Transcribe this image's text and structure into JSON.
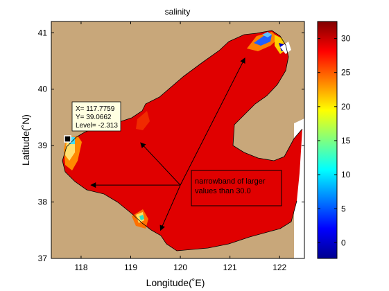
{
  "chart_data": {
    "type": "heatmap",
    "title": "salinity",
    "xlabel": "Longitude(˚E)",
    "ylabel": "Latitude(˚N)",
    "xlim": [
      117.4,
      122.5
    ],
    "ylim": [
      37,
      41.2
    ],
    "xticks": [
      118,
      119,
      120,
      121,
      122
    ],
    "yticks": [
      37,
      38,
      39,
      40,
      41
    ],
    "colorbar": {
      "range": [
        -2.3,
        32.5
      ],
      "ticks": [
        0,
        5,
        10,
        15,
        20,
        25,
        30
      ],
      "colormap": "jet"
    },
    "dominant_value": 30.5,
    "land_color": "#c8a77a",
    "datatip": {
      "x": 117.7759,
      "y": 39.0662,
      "level": -2.313,
      "lines": [
        "X= 117.7759",
        "Y= 39.0662",
        "Level= -2.313"
      ]
    },
    "annotation": {
      "lines": [
        "narrowband of larger",
        "values than 30.0"
      ],
      "arrow_origin": [
        120.0,
        38.3
      ],
      "arrow_targets": [
        [
          121.3,
          40.55
        ],
        [
          119.2,
          39.05
        ],
        [
          118.2,
          38.3
        ],
        [
          119.6,
          37.5
        ]
      ]
    }
  }
}
